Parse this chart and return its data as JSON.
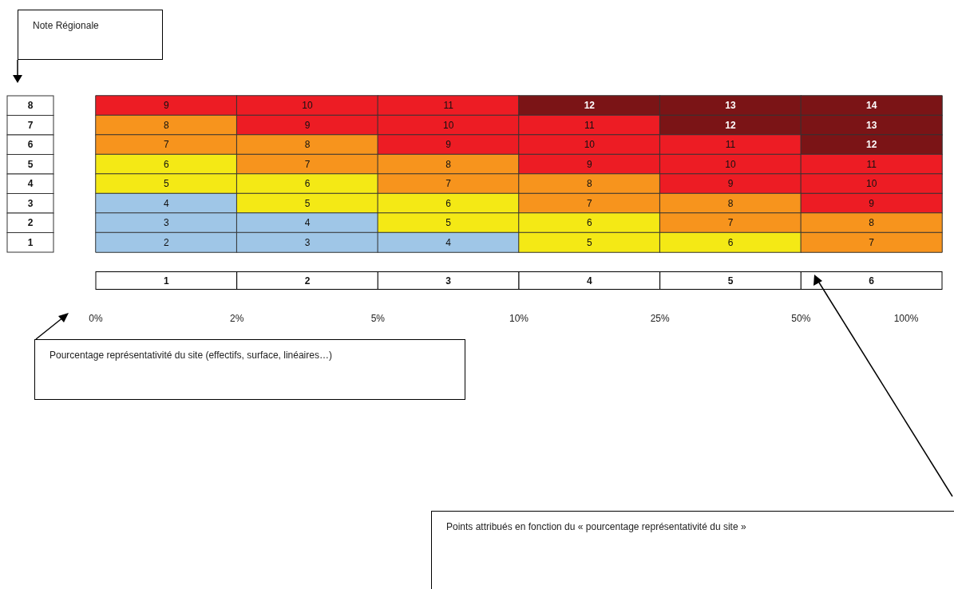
{
  "chart_data": {
    "type": "heatmap",
    "categories": [
      "1",
      "2",
      "3",
      "4",
      "5",
      "6"
    ],
    "y_categories": [
      "8",
      "7",
      "6",
      "5",
      "4",
      "3",
      "2",
      "1"
    ],
    "data_labels": true,
    "cells": [
      [
        9,
        10,
        11,
        12,
        13,
        14
      ],
      [
        8,
        9,
        10,
        11,
        12,
        13
      ],
      [
        7,
        8,
        9,
        10,
        11,
        12
      ],
      [
        6,
        7,
        8,
        9,
        10,
        11
      ],
      [
        5,
        6,
        7,
        8,
        9,
        10
      ],
      [
        4,
        5,
        6,
        7,
        8,
        9
      ],
      [
        3,
        4,
        5,
        6,
        7,
        8
      ],
      [
        2,
        3,
        4,
        5,
        6,
        7
      ]
    ],
    "colors": [
      [
        "#ed1c24",
        "#ed1c24",
        "#ed1c24",
        "#7b1416",
        "#7b1416",
        "#7b1416"
      ],
      [
        "#f7941d",
        "#ed1c24",
        "#ed1c24",
        "#ed1c24",
        "#7b1416",
        "#7b1416"
      ],
      [
        "#f7941d",
        "#f7941d",
        "#ed1c24",
        "#ed1c24",
        "#ed1c24",
        "#7b1416"
      ],
      [
        "#f4e915",
        "#f7941d",
        "#f7941d",
        "#ed1c24",
        "#ed1c24",
        "#ed1c24"
      ],
      [
        "#f4e915",
        "#f4e915",
        "#f7941d",
        "#f7941d",
        "#ed1c24",
        "#ed1c24"
      ],
      [
        "#9fc6e7",
        "#f4e915",
        "#f4e915",
        "#f7941d",
        "#f7941d",
        "#ed1c24"
      ],
      [
        "#9fc6e7",
        "#9fc6e7",
        "#f4e915",
        "#f4e915",
        "#f7941d",
        "#f7941d"
      ],
      [
        "#9fc6e7",
        "#9fc6e7",
        "#9fc6e7",
        "#f4e915",
        "#f4e915",
        "#f7941d"
      ]
    ],
    "annotations": [
      "Note Régionale",
      "0%",
      "2%",
      "5%",
      "10%",
      "25%",
      "50%",
      "100%",
      "Pourcentage représentativité du site (effectifs, surface, linéaires…)",
      "Points attribués en fonction du « pourcentage représentativité du site »"
    ]
  }
}
